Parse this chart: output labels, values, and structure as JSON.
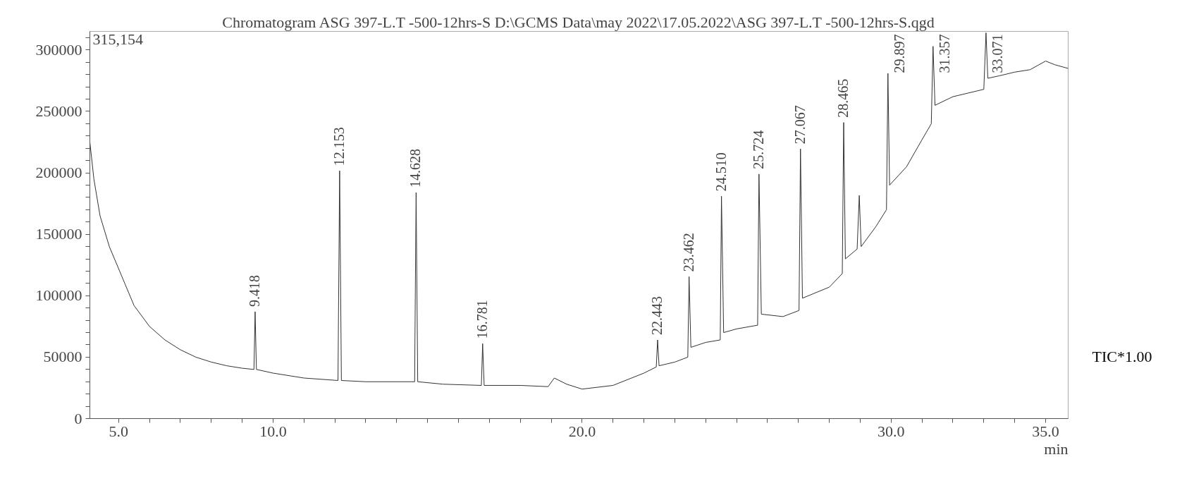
{
  "chart_data": {
    "type": "line",
    "title": "Chromatogram ASG 397-L.T -500-12hrs-S D:\\GCMS Data\\may 2022\\17.05.2022\\ASG 397-L.T -500-12hrs-S.qgd",
    "xlabel": "min",
    "xlim": [
      4.07,
      35.73
    ],
    "ylim": [
      0,
      315154
    ],
    "xticks": [
      {
        "value": 5,
        "label": "5.0"
      },
      {
        "value": 6,
        "label": null
      },
      {
        "value": 7,
        "label": null
      },
      {
        "value": 8,
        "label": null
      },
      {
        "value": 9,
        "label": null
      },
      {
        "value": 10,
        "label": "10.0"
      },
      {
        "value": 11,
        "label": null
      },
      {
        "value": 12,
        "label": null
      },
      {
        "value": 13,
        "label": null
      },
      {
        "value": 14,
        "label": null
      },
      {
        "value": 15,
        "label": null
      },
      {
        "value": 16,
        "label": null
      },
      {
        "value": 17,
        "label": null
      },
      {
        "value": 18,
        "label": null
      },
      {
        "value": 19,
        "label": null
      },
      {
        "value": 20,
        "label": "20.0"
      },
      {
        "value": 21,
        "label": null
      },
      {
        "value": 22,
        "label": null
      },
      {
        "value": 23,
        "label": null
      },
      {
        "value": 24,
        "label": null
      },
      {
        "value": 25,
        "label": null
      },
      {
        "value": 26,
        "label": null
      },
      {
        "value": 27,
        "label": null
      },
      {
        "value": 28,
        "label": null
      },
      {
        "value": 29,
        "label": null
      },
      {
        "value": 30,
        "label": "30.0"
      },
      {
        "value": 31,
        "label": null
      },
      {
        "value": 32,
        "label": null
      },
      {
        "value": 33,
        "label": null
      },
      {
        "value": 34,
        "label": null
      },
      {
        "value": 35,
        "label": "35.0"
      }
    ],
    "yticks": [
      0,
      {
        "value": 10000,
        "label": null
      },
      {
        "value": 20000,
        "label": null
      },
      {
        "value": 30000,
        "label": null
      },
      {
        "value": 40000,
        "label": null
      },
      50000,
      {
        "value": 60000,
        "label": null
      },
      {
        "value": 70000,
        "label": null
      },
      {
        "value": 80000,
        "label": null
      },
      {
        "value": 90000,
        "label": null
      },
      100000,
      {
        "value": 110000,
        "label": null
      },
      {
        "value": 120000,
        "label": null
      },
      {
        "value": 130000,
        "label": null
      },
      {
        "value": 140000,
        "label": null
      },
      150000,
      {
        "value": 160000,
        "label": null
      },
      {
        "value": 170000,
        "label": null
      },
      {
        "value": 180000,
        "label": null
      },
      {
        "value": 190000,
        "label": null
      },
      200000,
      {
        "value": 210000,
        "label": null
      },
      {
        "value": 220000,
        "label": null
      },
      {
        "value": 230000,
        "label": null
      },
      {
        "value": 240000,
        "label": null
      },
      250000,
      {
        "value": 260000,
        "label": null
      },
      {
        "value": 270000,
        "label": null
      },
      {
        "value": 280000,
        "label": null
      },
      {
        "value": 290000,
        "label": null
      },
      300000,
      {
        "value": 310000,
        "label": null
      }
    ],
    "grid": false,
    "legend": false,
    "marker": "none",
    "line_style": "solid",
    "series": [
      {
        "name": "TIC*1.00",
        "color": "#333333",
        "x": [
          4.07,
          4.2,
          4.4,
          4.7,
          5.0,
          5.5,
          6.0,
          6.5,
          7.0,
          7.5,
          8.0,
          8.5,
          9.0,
          9.38,
          9.418,
          9.46,
          10.0,
          11.0,
          12.1,
          12.153,
          12.21,
          13.0,
          14.0,
          14.58,
          14.628,
          14.68,
          15.5,
          16.74,
          16.781,
          16.83,
          18.0,
          18.9,
          19.1,
          19.5,
          20.0,
          21.0,
          22.0,
          22.4,
          22.443,
          22.49,
          23.0,
          23.42,
          23.462,
          23.52,
          24.0,
          24.47,
          24.51,
          24.58,
          25.0,
          25.68,
          25.724,
          25.8,
          26.5,
          27.02,
          27.067,
          27.13,
          28.0,
          28.42,
          28.465,
          28.52,
          28.9,
          28.97,
          29.03,
          29.5,
          29.85,
          29.897,
          29.95,
          30.5,
          31.0,
          31.3,
          31.357,
          31.42,
          32.0,
          32.5,
          33.0,
          33.071,
          33.13,
          33.5,
          34.0,
          34.5,
          35.0,
          35.3,
          35.73
        ],
        "values": [
          225000,
          195000,
          165000,
          140000,
          122000,
          92000,
          75000,
          64000,
          56000,
          50000,
          46000,
          43000,
          41000,
          40000,
          87000,
          40000,
          37000,
          33000,
          31000,
          201700,
          31000,
          30000,
          30000,
          30000,
          184000,
          30000,
          28000,
          27000,
          61000,
          27000,
          27000,
          26000,
          33000,
          28000,
          24000,
          27000,
          37000,
          42000,
          64000,
          43000,
          46000,
          50000,
          115500,
          58000,
          62000,
          64000,
          181000,
          70000,
          73000,
          76000,
          199000,
          85000,
          83000,
          88000,
          219500,
          98000,
          107000,
          118000,
          241000,
          130000,
          138000,
          181600,
          140000,
          156000,
          170000,
          281000,
          190000,
          205000,
          227000,
          240000,
          303000,
          255000,
          262000,
          265000,
          268000,
          314000,
          277000,
          279000,
          282000,
          284000,
          291000,
          288000,
          285000
        ]
      }
    ],
    "annotations": [
      "315,154",
      {
        "text": "9.418",
        "x": 9.418,
        "y": 87000
      },
      {
        "text": "12.153",
        "x": 12.153,
        "y": 201700
      },
      {
        "text": "14.628",
        "x": 14.628,
        "y": 184000
      },
      {
        "text": "16.781",
        "x": 16.781,
        "y": 61000
      },
      {
        "text": "22.443",
        "x": 22.443,
        "y": 64000
      },
      {
        "text": "23.462",
        "x": 23.462,
        "y": 115500
      },
      {
        "text": "24.510",
        "x": 24.51,
        "y": 181000
      },
      {
        "text": "25.724",
        "x": 25.724,
        "y": 199000
      },
      {
        "text": "27.067",
        "x": 27.067,
        "y": 219500
      },
      {
        "text": "28.465",
        "x": 28.465,
        "y": 241000
      },
      {
        "text": "29.897",
        "x": 29.897,
        "y": 281000
      },
      {
        "text": "31.357",
        "x": 31.357,
        "y": 303000
      },
      {
        "text": "33.071",
        "x": 33.071,
        "y": 314000
      }
    ]
  }
}
